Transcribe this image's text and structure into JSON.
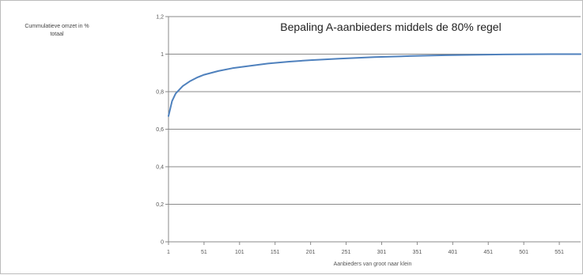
{
  "chart_data": {
    "type": "line",
    "title": "Bepaling A-aanbieders middels de 80% regel",
    "ylabel_lines": [
      "Cummulatieve omzet in %",
      "totaal"
    ],
    "xlabel": "Aanbieders van groot naar klein",
    "ylim": [
      0,
      1.2
    ],
    "xlim": [
      1,
      59
    ],
    "y_ticks": [
      "0",
      "0,2",
      "0,4",
      "0,6",
      "0,8",
      "1",
      "1,2"
    ],
    "x_ticks": [
      "1",
      "51",
      "101",
      "151",
      "201",
      "251",
      "301",
      "351",
      "401",
      "451",
      "501",
      "551"
    ],
    "grid": true,
    "legend": "none",
    "series": [
      {
        "color": "#4f81bd",
        "x": [
          1,
          1.5,
          2,
          3,
          4,
          5,
          6,
          8,
          10,
          12,
          15,
          18,
          21,
          25,
          30,
          35,
          40,
          45,
          50,
          55,
          59
        ],
        "values": [
          0.67,
          0.75,
          0.79,
          0.83,
          0.855,
          0.875,
          0.89,
          0.91,
          0.925,
          0.935,
          0.95,
          0.96,
          0.968,
          0.976,
          0.984,
          0.99,
          0.994,
          0.997,
          0.999,
          1.0,
          1.0
        ]
      }
    ]
  }
}
